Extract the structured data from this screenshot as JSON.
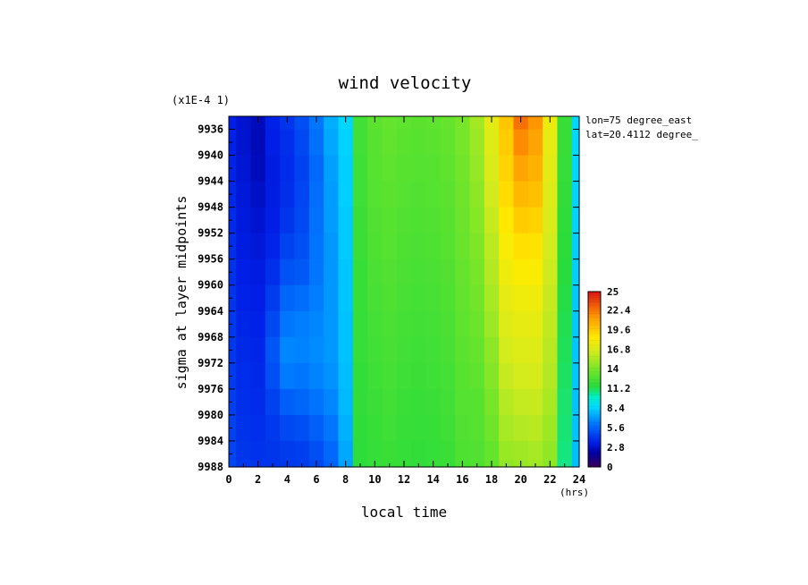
{
  "chart_data": {
    "type": "heatmap",
    "title": "wind velocity",
    "xlabel": "local time",
    "ylabel": "sigma at layer midpoints",
    "x_unit": "(hrs)",
    "y_multiplier": "(x1E-4 1)",
    "xlim": [
      0,
      24
    ],
    "ylim": [
      9934,
      9988
    ],
    "x_ticks": [
      "0",
      "2",
      "4",
      "6",
      "8",
      "10",
      "12",
      "14",
      "16",
      "18",
      "20",
      "22",
      "24"
    ],
    "y_ticks": [
      "9936",
      "9940",
      "9944",
      "9948",
      "9952",
      "9956",
      "9960",
      "9964",
      "9968",
      "9972",
      "9976",
      "9980",
      "9984",
      "9988"
    ],
    "annotations": [
      "lon=75 degree_east",
      "lat=20.4112 degree_"
    ],
    "colorbar": {
      "min": 0,
      "max": 25,
      "labels": [
        "25",
        "22.4",
        "19.6",
        "16.8",
        "14",
        "11.2",
        "8.4",
        "5.6",
        "2.8",
        "0"
      ]
    },
    "x": [
      0,
      1,
      2,
      3,
      4,
      5,
      6,
      7,
      8,
      9,
      10,
      11,
      12,
      13,
      14,
      15,
      16,
      17,
      18,
      19,
      20,
      21,
      22,
      23,
      24
    ],
    "y": [
      9934,
      9938,
      9942,
      9946,
      9950,
      9954,
      9958,
      9962,
      9966,
      9970,
      9974,
      9978,
      9982,
      9986,
      9988
    ],
    "z": [
      [
        3.5,
        3.0,
        2.6,
        3.6,
        4.2,
        5.0,
        6.2,
        7.5,
        8.5,
        12.3,
        13.1,
        13.4,
        13.2,
        13.1,
        13.2,
        13.4,
        14.0,
        15.2,
        17.3,
        19.8,
        22.5,
        21.5,
        17.6,
        12.0,
        8.5
      ],
      [
        3.6,
        3.0,
        2.5,
        3.5,
        4.0,
        4.8,
        6.0,
        7.4,
        8.4,
        12.3,
        13.0,
        13.3,
        13.1,
        13.0,
        13.1,
        13.3,
        13.9,
        15.0,
        17.0,
        19.6,
        21.8,
        21.0,
        17.4,
        12.0,
        8.5
      ],
      [
        3.7,
        3.1,
        2.6,
        3.4,
        3.9,
        4.6,
        5.8,
        7.2,
        8.3,
        12.2,
        13.0,
        13.2,
        13.0,
        12.9,
        13.0,
        13.2,
        13.8,
        14.8,
        16.8,
        19.3,
        21.0,
        20.5,
        17.2,
        11.9,
        8.5
      ],
      [
        3.8,
        3.2,
        2.8,
        3.4,
        4.0,
        4.7,
        5.9,
        7.1,
        8.3,
        12.2,
        12.9,
        13.1,
        12.9,
        12.8,
        12.9,
        13.1,
        13.7,
        14.6,
        16.5,
        19.0,
        20.3,
        20.0,
        17.0,
        11.8,
        8.4
      ],
      [
        3.9,
        3.3,
        3.0,
        3.5,
        4.2,
        4.8,
        6.0,
        7.1,
        8.2,
        12.1,
        12.8,
        13.0,
        12.8,
        12.7,
        12.8,
        13.0,
        13.6,
        14.4,
        16.2,
        18.6,
        19.6,
        19.4,
        16.8,
        11.7,
        8.4
      ],
      [
        4.0,
        3.4,
        3.2,
        3.7,
        4.6,
        5.0,
        6.1,
        7.0,
        8.2,
        12.1,
        12.7,
        12.9,
        12.7,
        12.6,
        12.7,
        12.9,
        13.5,
        14.2,
        15.9,
        18.2,
        18.9,
        18.8,
        16.6,
        11.6,
        8.3
      ],
      [
        4.1,
        3.5,
        3.4,
        4.0,
        5.1,
        5.3,
        6.2,
        7.0,
        8.1,
        12.0,
        12.6,
        12.8,
        12.6,
        12.5,
        12.6,
        12.8,
        13.4,
        14.0,
        15.6,
        17.8,
        18.3,
        18.3,
        16.4,
        11.5,
        8.3
      ],
      [
        4.2,
        3.6,
        3.5,
        4.4,
        5.7,
        5.9,
        6.4,
        7.0,
        8.1,
        12.0,
        12.5,
        12.7,
        12.5,
        12.4,
        12.5,
        12.7,
        13.3,
        13.8,
        15.3,
        17.4,
        17.8,
        17.8,
        16.2,
        11.4,
        8.2
      ],
      [
        4.3,
        3.7,
        3.6,
        4.8,
        6.2,
        6.4,
        6.6,
        7.0,
        8.0,
        11.9,
        12.4,
        12.6,
        12.4,
        12.3,
        12.4,
        12.6,
        13.2,
        13.6,
        15.0,
        17.0,
        17.4,
        17.4,
        16.0,
        11.3,
        8.2
      ],
      [
        4.3,
        3.8,
        3.7,
        5.2,
        6.6,
        6.5,
        6.7,
        7.0,
        8.0,
        11.9,
        12.3,
        12.5,
        12.3,
        12.2,
        12.3,
        12.5,
        13.1,
        13.4,
        14.6,
        16.6,
        17.0,
        17.0,
        15.8,
        11.2,
        8.1
      ],
      [
        4.4,
        3.9,
        3.8,
        5.0,
        6.3,
        6.2,
        6.5,
        6.9,
        7.9,
        11.8,
        12.2,
        12.4,
        12.2,
        12.1,
        12.2,
        12.4,
        13.0,
        13.2,
        14.3,
        16.2,
        16.6,
        16.6,
        15.6,
        11.1,
        8.1
      ],
      [
        4.5,
        4.0,
        3.9,
        4.6,
        5.5,
        5.7,
        6.1,
        6.6,
        7.8,
        11.8,
        12.1,
        12.3,
        12.1,
        12.0,
        12.1,
        12.3,
        12.9,
        13.0,
        14.0,
        15.7,
        16.1,
        16.2,
        15.3,
        11.0,
        8.0
      ],
      [
        4.6,
        4.1,
        4.0,
        4.3,
        4.8,
        5.0,
        5.5,
        6.2,
        7.6,
        11.7,
        12.0,
        12.2,
        12.0,
        11.9,
        12.0,
        12.2,
        12.8,
        12.9,
        13.7,
        15.3,
        15.6,
        15.8,
        15.0,
        10.9,
        8.0
      ],
      [
        4.7,
        4.2,
        4.1,
        4.2,
        4.4,
        4.5,
        5.0,
        5.8,
        7.4,
        11.7,
        11.9,
        12.1,
        11.9,
        11.8,
        11.9,
        12.1,
        12.7,
        12.8,
        13.4,
        14.9,
        15.1,
        15.3,
        14.7,
        10.8,
        7.9
      ],
      [
        4.8,
        4.3,
        4.2,
        4.2,
        4.3,
        4.4,
        4.8,
        5.6,
        7.3,
        11.6,
        11.9,
        12.0,
        11.9,
        11.8,
        11.9,
        12.0,
        12.6,
        12.7,
        13.3,
        14.7,
        14.9,
        15.1,
        14.6,
        10.7,
        7.9
      ]
    ]
  }
}
